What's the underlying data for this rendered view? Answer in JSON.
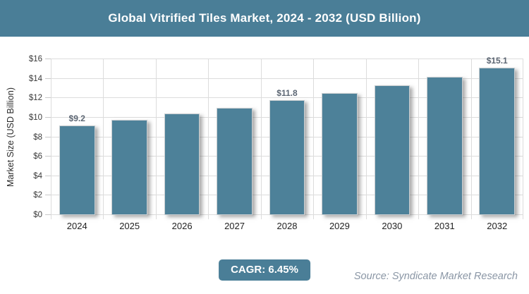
{
  "header": {
    "title": "Global Vitrified Tiles Market, 2024 - 2032 (USD Billion)"
  },
  "chart_data": {
    "type": "bar",
    "title": "Global Vitrified Tiles Market, 2024 - 2032 (USD Billion)",
    "categories": [
      "2024",
      "2025",
      "2026",
      "2027",
      "2028",
      "2029",
      "2030",
      "2031",
      "2032"
    ],
    "values": [
      9.2,
      9.8,
      10.4,
      11.0,
      11.8,
      12.5,
      13.3,
      14.2,
      15.1
    ],
    "data_labels": [
      "$9.2",
      "",
      "",
      "",
      "$11.8",
      "",
      "",
      "",
      "$15.1"
    ],
    "xlabel": "",
    "ylabel": "Market Size (USD Billion)",
    "y_ticks": [
      "$0",
      "$2",
      "$4",
      "$6",
      "$8",
      "$10",
      "$12",
      "$14",
      "$16"
    ],
    "ylim": [
      0,
      16
    ],
    "grid": true,
    "legend": "none",
    "bar_color": "#4d8199"
  },
  "footer": {
    "cagr_label": "CAGR: 6.45%",
    "source": "Source: Syndicate Market Research"
  },
  "colors": {
    "banner_bg": "#4a7e97",
    "badge_bg": "#4a7e97",
    "bar_fill": "#4d8199",
    "gridline": "#dcdcdc",
    "data_label": "#5c6673",
    "source_text": "#8a96a5"
  }
}
